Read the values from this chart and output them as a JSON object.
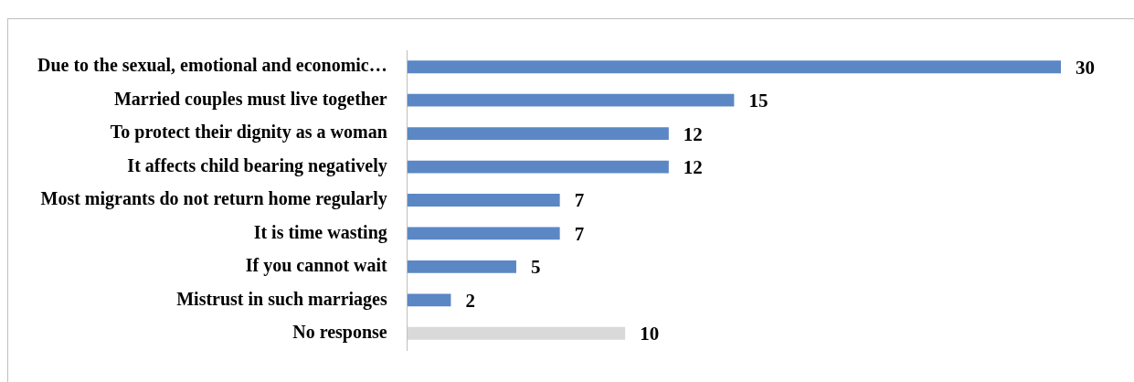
{
  "chart_data": {
    "type": "bar",
    "orientation": "horizontal",
    "categories": [
      "Due to the sexual, emotional and economic…",
      "Married couples must live together",
      "To protect their dignity as a woman",
      "It affects child bearing negatively",
      "Most migrants do not return home regularly",
      "It is time wasting",
      "If you cannot wait",
      "Mistrust in such marriages",
      "No response"
    ],
    "values": [
      30,
      15,
      12,
      12,
      7,
      7,
      5,
      2,
      10
    ],
    "colors": [
      "#5b87c5",
      "#5b87c5",
      "#5b87c5",
      "#5b87c5",
      "#5b87c5",
      "#5b87c5",
      "#5b87c5",
      "#5b87c5",
      "#d9d9d9"
    ],
    "data_labels": true,
    "legend": false
  }
}
